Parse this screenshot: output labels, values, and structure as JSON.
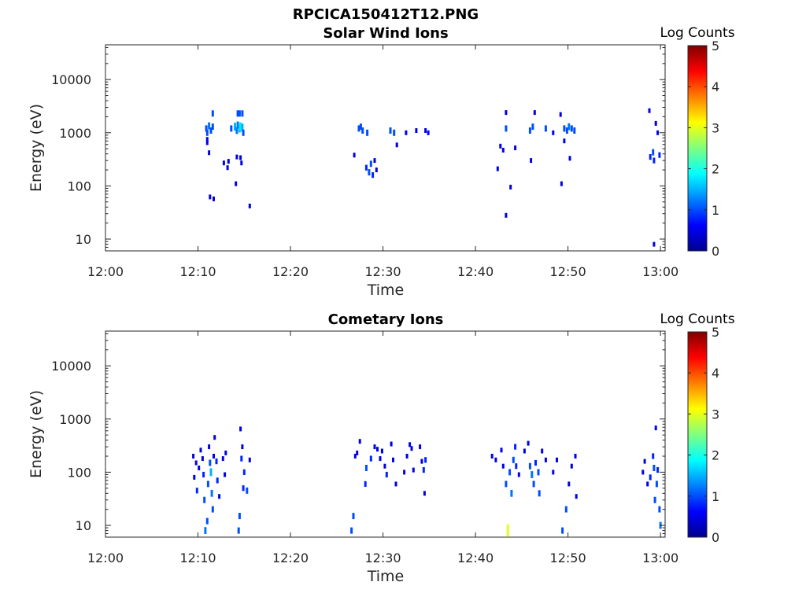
{
  "figure": {
    "title": "RPCICA150412T12.PNG"
  },
  "panels": [
    {
      "title": "Solar Wind Ions",
      "xlabel": "Time",
      "ylabel": "Energy (eV)",
      "colorbar_label": "Log Counts"
    },
    {
      "title": "Cometary Ions",
      "xlabel": "Time",
      "ylabel": "Energy (eV)",
      "colorbar_label": "Log Counts"
    }
  ],
  "colorbar": {
    "ticks": [
      "0",
      "1",
      "2",
      "3",
      "4",
      "5"
    ],
    "colormap": "jet"
  },
  "x_ticks": [
    "12:00",
    "12:10",
    "12:20",
    "12:30",
    "12:40",
    "12:50",
    "13:00"
  ],
  "y_ticks": [
    "10",
    "100",
    "1000",
    "10000"
  ],
  "colors": {
    "low": "#00008f",
    "mid": "#0033ff",
    "high": "#1f7fff",
    "axis": "#262626"
  },
  "chart_data": [
    {
      "type": "heatmap",
      "title": "Solar Wind Ions",
      "xlabel": "Time",
      "ylabel": "Energy (eV)",
      "xlim_minutes": [
        0,
        60.5
      ],
      "ylim": [
        6,
        45000
      ],
      "yscale": "log",
      "colorbar": {
        "label": "Log Counts",
        "range": [
          0,
          5
        ]
      },
      "cells": [
        [
          10.9,
          1200,
          1
        ],
        [
          11.0,
          1000,
          1
        ],
        [
          11.2,
          1350,
          1.2
        ],
        [
          11.4,
          1100,
          1
        ],
        [
          11.6,
          2300,
          1
        ],
        [
          11.6,
          1300,
          1
        ],
        [
          11.2,
          420,
          0.5
        ],
        [
          11.3,
          62,
          0.5
        ],
        [
          11.7,
          57,
          0.5
        ],
        [
          11.0,
          750,
          0.5
        ],
        [
          11.0,
          650,
          0.5
        ],
        [
          12.8,
          270,
          0.5
        ],
        [
          13.2,
          220,
          0.5
        ],
        [
          13.3,
          290,
          0.5
        ],
        [
          13.6,
          1200,
          1
        ],
        [
          14.0,
          1300,
          1.5
        ],
        [
          14.2,
          1100,
          1.2
        ],
        [
          14.3,
          1400,
          1.2
        ],
        [
          14.5,
          1200,
          1.5
        ],
        [
          14.6,
          1300,
          1.8
        ],
        [
          14.8,
          1250,
          1.5
        ],
        [
          14.9,
          1000,
          1
        ],
        [
          14.3,
          2300,
          1
        ],
        [
          14.5,
          2300,
          1
        ],
        [
          14.8,
          2300,
          1
        ],
        [
          14.2,
          350,
          0.5
        ],
        [
          14.6,
          340,
          0.5
        ],
        [
          14.7,
          270,
          0.5
        ],
        [
          14.1,
          110,
          0.5
        ],
        [
          15.6,
          42,
          0.5
        ],
        [
          26.9,
          380,
          0.5
        ],
        [
          27.4,
          1200,
          1
        ],
        [
          27.6,
          1300,
          1
        ],
        [
          27.8,
          1100,
          1
        ],
        [
          28.3,
          1000,
          1
        ],
        [
          28.2,
          220,
          0.8
        ],
        [
          28.5,
          180,
          1
        ],
        [
          28.7,
          260,
          1
        ],
        [
          28.9,
          160,
          0.8
        ],
        [
          29.1,
          300,
          0.5
        ],
        [
          29.3,
          200,
          0.5
        ],
        [
          30.8,
          1100,
          1
        ],
        [
          31.2,
          1000,
          1
        ],
        [
          31.5,
          590,
          0.5
        ],
        [
          32.5,
          1000,
          0.5
        ],
        [
          33.6,
          1100,
          0.5
        ],
        [
          34.6,
          1100,
          0.5
        ],
        [
          34.9,
          1000,
          0.5
        ],
        [
          42.4,
          210,
          0.5
        ],
        [
          42.7,
          560,
          0.5
        ],
        [
          43.0,
          470,
          0.5
        ],
        [
          43.3,
          2400,
          0.5
        ],
        [
          43.3,
          1200,
          1
        ],
        [
          43.3,
          28,
          0.5
        ],
        [
          43.8,
          95,
          0.5
        ],
        [
          44.3,
          520,
          0.5
        ],
        [
          45.9,
          1100,
          1
        ],
        [
          46.2,
          1300,
          1
        ],
        [
          46.4,
          2400,
          0.5
        ],
        [
          46.0,
          300,
          0.5
        ],
        [
          47.6,
          1200,
          1
        ],
        [
          48.4,
          1000,
          0.5
        ],
        [
          49.2,
          2200,
          0.5
        ],
        [
          49.6,
          1200,
          1
        ],
        [
          49.9,
          1100,
          1
        ],
        [
          50.1,
          1300,
          1.2
        ],
        [
          50.4,
          1200,
          1
        ],
        [
          50.7,
          1100,
          1
        ],
        [
          49.3,
          110,
          0.5
        ],
        [
          49.6,
          700,
          0.5
        ],
        [
          50.2,
          330,
          0.5
        ],
        [
          58.8,
          2600,
          0.5
        ],
        [
          58.9,
          350,
          0.8
        ],
        [
          59.2,
          430,
          1
        ],
        [
          59.3,
          300,
          0.8
        ],
        [
          59.5,
          1500,
          0.5
        ],
        [
          59.7,
          1000,
          0.5
        ],
        [
          59.9,
          380,
          0.8
        ],
        [
          59.3,
          8,
          0.5
        ]
      ]
    },
    {
      "type": "heatmap",
      "title": "Cometary Ions",
      "xlabel": "Time",
      "ylabel": "Energy (eV)",
      "xlim_minutes": [
        0,
        60.5
      ],
      "ylim": [
        6,
        45000
      ],
      "yscale": "log",
      "colorbar": {
        "label": "Log Counts",
        "range": [
          0,
          5
        ]
      },
      "cells": [
        [
          9.5,
          200,
          0.5
        ],
        [
          9.6,
          80,
          0.5
        ],
        [
          9.8,
          150,
          0.5
        ],
        [
          9.9,
          45,
          0.8
        ],
        [
          10.1,
          120,
          0.5
        ],
        [
          10.3,
          260,
          0.5
        ],
        [
          10.5,
          180,
          0.5
        ],
        [
          10.6,
          90,
          0.8
        ],
        [
          10.7,
          30,
          1
        ],
        [
          10.8,
          8,
          1.2
        ],
        [
          11.0,
          12,
          1
        ],
        [
          11.1,
          60,
          1
        ],
        [
          11.2,
          300,
          0.5
        ],
        [
          11.3,
          150,
          1
        ],
        [
          11.4,
          100,
          1.5
        ],
        [
          11.5,
          40,
          1.2
        ],
        [
          11.6,
          20,
          1
        ],
        [
          11.7,
          200,
          0.5
        ],
        [
          11.8,
          450,
          0.5
        ],
        [
          12.0,
          160,
          0.8
        ],
        [
          12.1,
          70,
          0.8
        ],
        [
          12.3,
          35,
          0.5
        ],
        [
          12.7,
          180,
          0.5
        ],
        [
          13.0,
          230,
          0.5
        ],
        [
          12.9,
          90,
          0.5
        ],
        [
          14.4,
          8,
          1
        ],
        [
          14.5,
          15,
          1
        ],
        [
          14.6,
          650,
          0.5
        ],
        [
          14.7,
          180,
          0.8
        ],
        [
          14.8,
          300,
          0.5
        ],
        [
          14.9,
          50,
          0.8
        ],
        [
          15.0,
          100,
          0.8
        ],
        [
          15.3,
          45,
          1
        ],
        [
          15.6,
          170,
          0.5
        ],
        [
          26.6,
          8,
          1
        ],
        [
          26.8,
          15,
          1
        ],
        [
          27.0,
          200,
          0.5
        ],
        [
          27.2,
          230,
          0.5
        ],
        [
          27.5,
          380,
          0.5
        ],
        [
          28.1,
          60,
          0.8
        ],
        [
          28.2,
          120,
          1
        ],
        [
          28.7,
          180,
          0.8
        ],
        [
          29.1,
          300,
          0.5
        ],
        [
          29.4,
          270,
          0.5
        ],
        [
          29.7,
          180,
          0.5
        ],
        [
          29.9,
          250,
          0.5
        ],
        [
          30.2,
          130,
          0.5
        ],
        [
          30.4,
          90,
          0.8
        ],
        [
          30.9,
          340,
          0.5
        ],
        [
          31.1,
          170,
          0.5
        ],
        [
          31.4,
          60,
          0.5
        ],
        [
          32.3,
          100,
          0.5
        ],
        [
          32.6,
          200,
          0.5
        ],
        [
          32.9,
          330,
          0.5
        ],
        [
          33.1,
          280,
          0.5
        ],
        [
          33.3,
          110,
          0.5
        ],
        [
          34.0,
          300,
          0.5
        ],
        [
          34.2,
          160,
          0.5
        ],
        [
          34.4,
          110,
          0.8
        ],
        [
          34.6,
          170,
          0.8
        ],
        [
          34.5,
          40,
          0.5
        ],
        [
          41.8,
          200,
          0.5
        ],
        [
          42.2,
          170,
          0.5
        ],
        [
          42.8,
          260,
          0.5
        ],
        [
          43.0,
          130,
          0.5
        ],
        [
          43.3,
          60,
          1
        ],
        [
          43.5,
          8,
          3
        ],
        [
          43.7,
          100,
          1
        ],
        [
          43.9,
          40,
          1.2
        ],
        [
          44.1,
          170,
          1
        ],
        [
          44.3,
          300,
          0.8
        ],
        [
          44.4,
          130,
          0.8
        ],
        [
          44.7,
          90,
          0.5
        ],
        [
          45.3,
          250,
          0.5
        ],
        [
          45.7,
          350,
          0.5
        ],
        [
          45.9,
          130,
          1
        ],
        [
          46.1,
          90,
          1.2
        ],
        [
          46.3,
          60,
          1
        ],
        [
          46.5,
          150,
          0.8
        ],
        [
          46.8,
          100,
          1
        ],
        [
          46.9,
          40,
          1
        ],
        [
          47.2,
          250,
          0.5
        ],
        [
          47.6,
          170,
          0.5
        ],
        [
          48.4,
          100,
          0.5
        ],
        [
          48.8,
          170,
          0.5
        ],
        [
          49.4,
          8,
          1
        ],
        [
          49.8,
          20,
          1
        ],
        [
          50.1,
          60,
          0.5
        ],
        [
          50.4,
          130,
          0.5
        ],
        [
          50.8,
          200,
          0.5
        ],
        [
          50.9,
          35,
          0.5
        ],
        [
          58.1,
          100,
          0.5
        ],
        [
          58.3,
          160,
          0.5
        ],
        [
          58.6,
          60,
          0.5
        ],
        [
          58.9,
          80,
          0.8
        ],
        [
          59.2,
          200,
          0.8
        ],
        [
          59.3,
          120,
          1
        ],
        [
          59.4,
          30,
          1
        ],
        [
          59.5,
          680,
          0.5
        ],
        [
          59.6,
          60,
          1
        ],
        [
          59.7,
          110,
          0.8
        ],
        [
          59.9,
          20,
          1
        ],
        [
          60.0,
          10,
          1.2
        ]
      ]
    }
  ]
}
